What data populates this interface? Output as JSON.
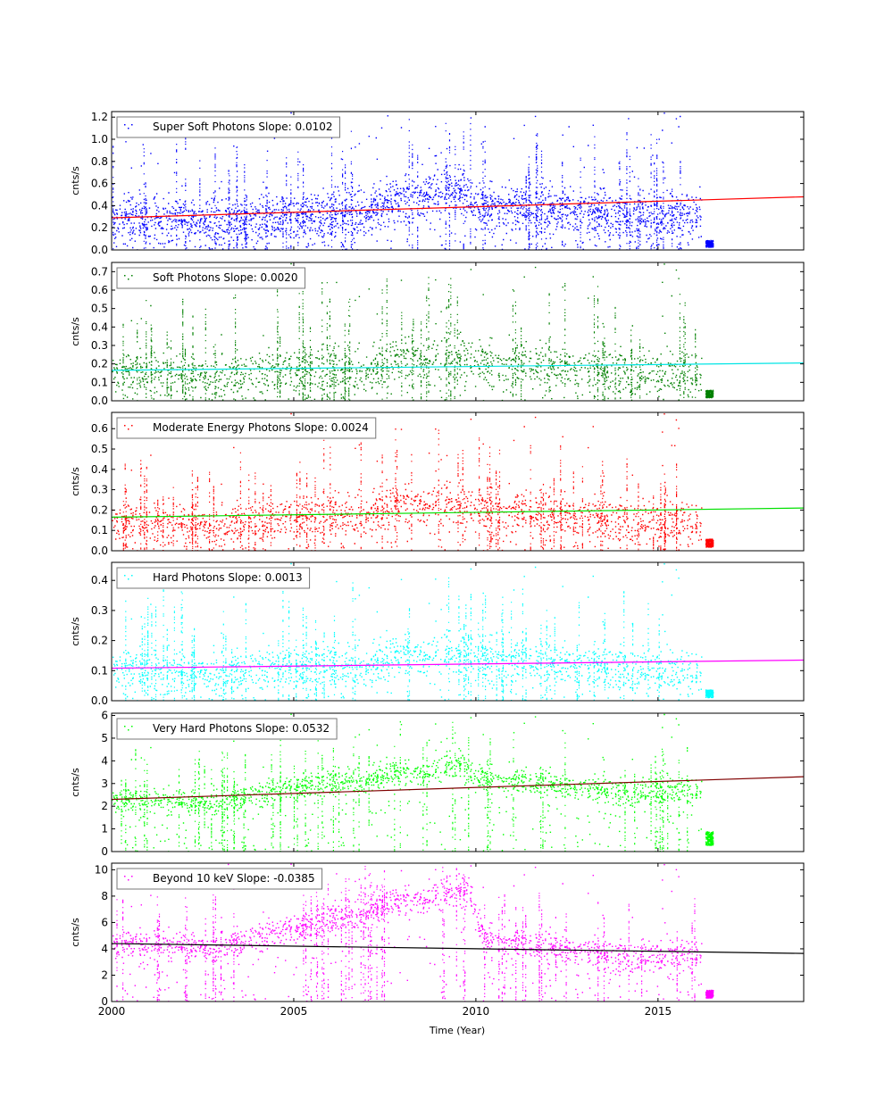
{
  "chart_data": {
    "type": "scatter",
    "xlabel": "Time (Year)",
    "xlim": [
      2000,
      2019
    ],
    "xticks": [
      2000,
      2005,
      2010,
      2015
    ],
    "panels": [
      {
        "legend": "Super Soft Photons Slope: 0.0102",
        "ylabel": "cnts/s",
        "ylim": [
          0,
          1.25
        ],
        "yticks": [
          0.0,
          0.2,
          0.4,
          0.6,
          0.8,
          1.0,
          1.2
        ],
        "point_color": "#0000ff",
        "fit_color": "#ff0000",
        "slope": 0.0102,
        "fit_line": {
          "x": [
            2000,
            2019
          ],
          "y": [
            0.29,
            0.48
          ]
        },
        "trend": {
          "x": [
            2000,
            2003,
            2005,
            2007,
            2008.7,
            2009.5,
            2010,
            2012,
            2014,
            2016.2
          ],
          "y": [
            0.3,
            0.28,
            0.3,
            0.38,
            0.52,
            0.55,
            0.42,
            0.38,
            0.32,
            0.35
          ]
        },
        "spread": 0.2,
        "tail": {
          "x": [
            2016.3,
            2016.5
          ],
          "y": 0.06
        }
      },
      {
        "legend": "Soft Photons Slope: 0.0020",
        "ylabel": "cnts/s",
        "ylim": [
          0,
          0.75
        ],
        "yticks": [
          0.0,
          0.1,
          0.2,
          0.3,
          0.4,
          0.5,
          0.6,
          0.7
        ],
        "point_color": "#008000",
        "fit_color": "#00e5e5",
        "slope": 0.002,
        "fit_line": {
          "x": [
            2000,
            2019
          ],
          "y": [
            0.165,
            0.205
          ]
        },
        "trend": {
          "x": [
            2000,
            2003,
            2005,
            2007,
            2008.7,
            2010,
            2012,
            2014,
            2016.2
          ],
          "y": [
            0.16,
            0.15,
            0.16,
            0.19,
            0.24,
            0.22,
            0.2,
            0.16,
            0.17
          ]
        },
        "spread": 0.12,
        "tail": {
          "x": [
            2016.3,
            2016.5
          ],
          "y": 0.04
        }
      },
      {
        "legend": "Moderate Energy Photons Slope: 0.0024",
        "ylabel": "cnts/s",
        "ylim": [
          0,
          0.68
        ],
        "yticks": [
          0.0,
          0.1,
          0.2,
          0.3,
          0.4,
          0.5,
          0.6
        ],
        "point_color": "#ff0000",
        "fit_color": "#00e000",
        "slope": 0.0024,
        "fit_line": {
          "x": [
            2000,
            2019
          ],
          "y": [
            0.165,
            0.21
          ]
        },
        "trend": {
          "x": [
            2000,
            2003,
            2005,
            2007,
            2008.7,
            2010,
            2012,
            2014,
            2016.2
          ],
          "y": [
            0.15,
            0.14,
            0.16,
            0.2,
            0.24,
            0.21,
            0.19,
            0.15,
            0.16
          ]
        },
        "spread": 0.1,
        "tail": {
          "x": [
            2016.3,
            2016.5
          ],
          "y": 0.04
        }
      },
      {
        "legend": "Hard Photons Slope: 0.0013",
        "ylabel": "cnts/s",
        "ylim": [
          0,
          0.46
        ],
        "yticks": [
          0.0,
          0.1,
          0.2,
          0.3,
          0.4
        ],
        "point_color": "#00ffff",
        "fit_color": "#ff00ff",
        "slope": 0.0013,
        "fit_line": {
          "x": [
            2000,
            2019
          ],
          "y": [
            0.108,
            0.135
          ]
        },
        "trend": {
          "x": [
            2000,
            2003,
            2005,
            2007,
            2008.7,
            2010,
            2012,
            2014,
            2016.2
          ],
          "y": [
            0.11,
            0.1,
            0.11,
            0.13,
            0.16,
            0.15,
            0.13,
            0.11,
            0.11
          ]
        },
        "spread": 0.07,
        "tail": {
          "x": [
            2016.3,
            2016.5
          ],
          "y": 0.025
        }
      },
      {
        "legend": "Very Hard Photons Slope: 0.0532",
        "ylabel": "cnts/s",
        "ylim": [
          0,
          6.1
        ],
        "yticks": [
          0,
          1,
          2,
          3,
          4,
          5,
          6
        ],
        "point_color": "#00ff00",
        "fit_color": "#800000",
        "slope": 0.0532,
        "fit_line": {
          "x": [
            2000,
            2019
          ],
          "y": [
            2.3,
            3.3
          ]
        },
        "trend": {
          "x": [
            2000,
            2003,
            2005,
            2007,
            2008.7,
            2009.5,
            2010,
            2012,
            2014,
            2016.2
          ],
          "y": [
            2.3,
            2.2,
            2.8,
            3.3,
            3.5,
            3.9,
            3.3,
            3.0,
            2.6,
            2.8
          ]
        },
        "spread": 0.6,
        "tail": {
          "x": [
            2016.3,
            2016.5
          ],
          "y": 0.6
        }
      },
      {
        "legend": "Beyond 10 keV Slope: -0.0385",
        "ylabel": "cnts/s",
        "ylim": [
          0,
          10.5
        ],
        "yticks": [
          0,
          2,
          4,
          6,
          8,
          10
        ],
        "point_color": "#ff00ff",
        "fit_color": "#000000",
        "slope": -0.0385,
        "fit_line": {
          "x": [
            2000,
            2019
          ],
          "y": [
            4.4,
            3.65
          ]
        },
        "trend": {
          "x": [
            2000,
            2003,
            2005,
            2007,
            2008.5,
            2009.8,
            2010.2,
            2012,
            2014,
            2016.2
          ],
          "y": [
            4.4,
            4.2,
            5.5,
            7.0,
            7.8,
            8.5,
            4.8,
            4.2,
            3.4,
            3.8
          ]
        },
        "spread": 1.2,
        "tail": {
          "x": [
            2016.3,
            2016.5
          ],
          "y": 0.6
        }
      }
    ]
  }
}
